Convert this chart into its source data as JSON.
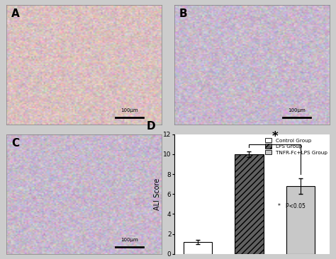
{
  "categories": [
    "Control Group",
    "LPS Group",
    "TNFR-Fc+LPS Group"
  ],
  "values": [
    1.2,
    10.0,
    6.8
  ],
  "errors": [
    0.2,
    0.3,
    0.8
  ],
  "bar_colors": [
    "white",
    "#606060",
    "#c8c8c8"
  ],
  "bar_hatches": [
    null,
    "////",
    null
  ],
  "bar_edgecolors": [
    "black",
    "black",
    "black"
  ],
  "ylabel": "ALI Score",
  "ylim": [
    0,
    12
  ],
  "yticks": [
    0,
    2,
    4,
    6,
    8,
    10,
    12
  ],
  "panel_label_D": "D",
  "panel_label_A": "A",
  "panel_label_B": "B",
  "panel_label_C": "C",
  "legend_labels": [
    "Control Group",
    "LPS Group",
    "TNFR-Fc+LPS Group"
  ],
  "legend_colors": [
    "white",
    "#606060",
    "#c8c8c8"
  ],
  "legend_hatches": [
    null,
    "////",
    null
  ],
  "sig_note": "*   P<0.05",
  "figsize": [
    4.74,
    3.66
  ],
  "dpi": 100,
  "background": "#cccccc",
  "micro_color_A": "#d8b8b8",
  "micro_color_B": "#c8b8c8",
  "micro_color_C": "#c8b8c8",
  "scale_bar_color": "black",
  "scale_label": "100μm"
}
